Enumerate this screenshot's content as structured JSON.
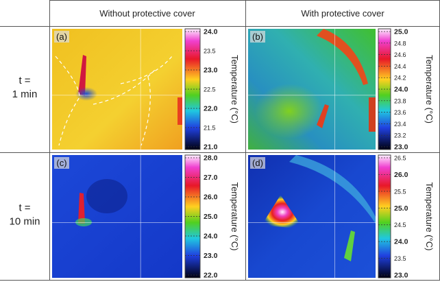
{
  "header": {
    "cells": [
      "Without protective cover",
      "With protective cover"
    ]
  },
  "rows": [
    {
      "label": [
        "t =",
        "1 min"
      ]
    },
    {
      "label": [
        "t =",
        "10 min"
      ]
    }
  ],
  "panels": [
    {
      "label": "(a)",
      "axis_label": "Temperature (°C)",
      "ticks": [
        "24.0",
        "23.5",
        "23.0",
        "22.5",
        "22.0",
        "21.5",
        "21.0"
      ]
    },
    {
      "label": "(b)",
      "axis_label": "Temperature (°C)",
      "ticks": [
        "25.0",
        "24.8",
        "24.6",
        "24.4",
        "24.2",
        "24.0",
        "23.8",
        "23.6",
        "23.4",
        "23.2",
        "23.0"
      ]
    },
    {
      "label": "(c)",
      "axis_label": "Temperature (°C)",
      "ticks": [
        "28.0",
        "27.0",
        "26.0",
        "25.0",
        "24.0",
        "23.0",
        "22.0"
      ]
    },
    {
      "label": "(d)",
      "axis_label": "Temperature (°C)",
      "ticks": [
        "26.5",
        "26.0",
        "25.5",
        "25.0",
        "24.5",
        "24.0",
        "23.5",
        "23.0"
      ]
    }
  ]
}
